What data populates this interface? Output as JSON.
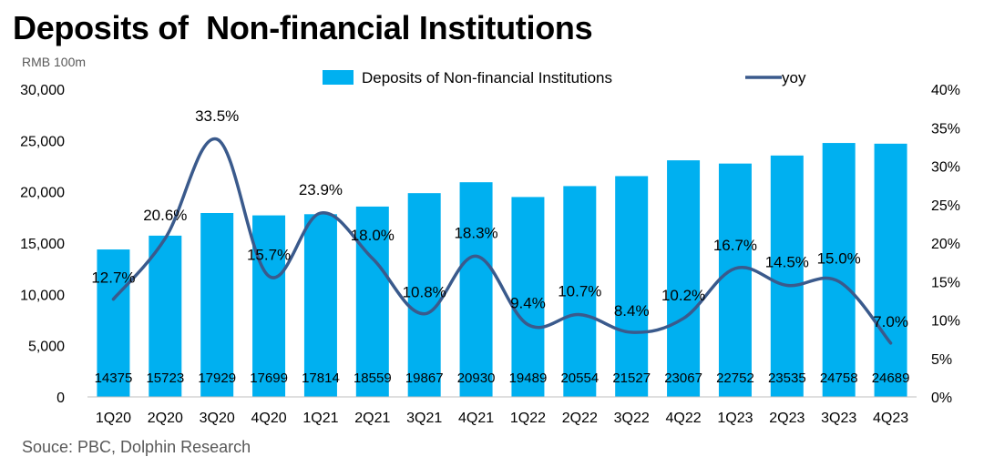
{
  "header": {
    "title": "Deposits of  Non-financial Institutions",
    "unit": "RMB 100m",
    "source": "Souce: PBC, Dolphin Research"
  },
  "colors": {
    "bar": "#00B0F0",
    "line": "#3A5A8C"
  },
  "chart_data": {
    "type": "bar",
    "title": "Deposits of  Non-financial Institutions",
    "categories": [
      "1Q20",
      "2Q20",
      "3Q20",
      "4Q20",
      "1Q21",
      "2Q21",
      "3Q21",
      "4Q21",
      "1Q22",
      "2Q22",
      "3Q22",
      "4Q22",
      "1Q23",
      "2Q23",
      "3Q23",
      "4Q23"
    ],
    "series": [
      {
        "name": "Deposits of  Non-financial Institutions",
        "type": "bar",
        "axis": "left",
        "values": [
          14375,
          15723,
          17929,
          17699,
          17814,
          18559,
          19867,
          20930,
          19489,
          20554,
          21527,
          23067,
          22752,
          23535,
          24758,
          24689
        ],
        "labels": [
          "14375",
          "15723",
          "17929",
          "17699",
          "17814",
          "18559",
          "19867",
          "20930",
          "19489",
          "20554",
          "21527",
          "23067",
          "22752",
          "23535",
          "24758",
          "24689"
        ]
      },
      {
        "name": "yoy",
        "type": "line",
        "axis": "right",
        "values": [
          12.7,
          20.6,
          33.5,
          15.7,
          23.9,
          18.0,
          10.8,
          18.3,
          9.4,
          10.7,
          8.4,
          10.2,
          16.7,
          14.5,
          15.0,
          7.0
        ],
        "labels": [
          "12.7%",
          "20.6%",
          "33.5%",
          "15.7%",
          "23.9%",
          "18.0%",
          "10.8%",
          "18.3%",
          "9.4%",
          "10.7%",
          "8.4%",
          "10.2%",
          "16.7%",
          "14.5%",
          "15.0%",
          "7.0%"
        ]
      }
    ],
    "ylabel": "RMB 100m",
    "ylim": [
      0,
      30000
    ],
    "yticks": [
      "0",
      "5,000",
      "10,000",
      "15,000",
      "20,000",
      "25,000",
      "30,000"
    ],
    "y2lim": [
      0,
      40
    ],
    "y2ticks": [
      "0%",
      "5%",
      "10%",
      "15%",
      "20%",
      "25%",
      "30%",
      "35%",
      "40%"
    ],
    "grid": false,
    "legend": "top"
  }
}
